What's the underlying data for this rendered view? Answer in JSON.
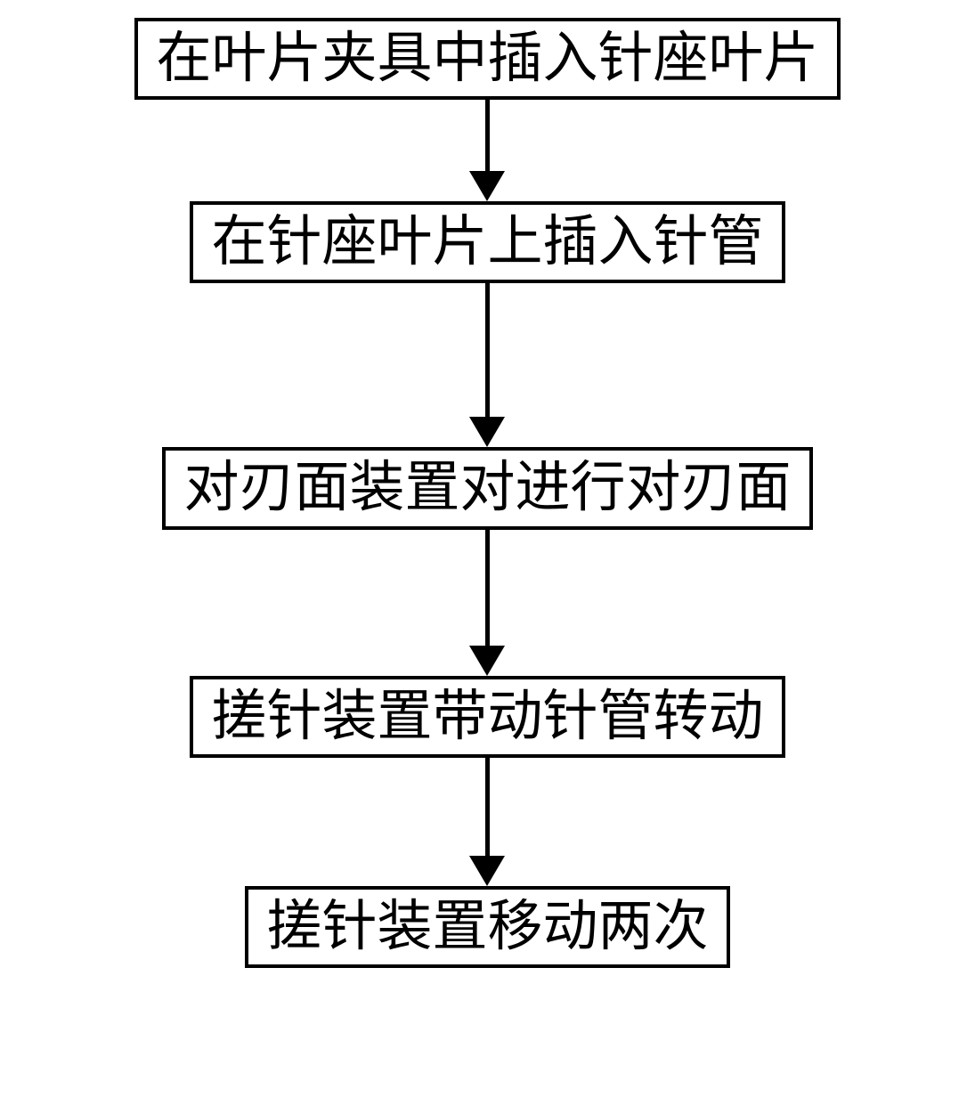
{
  "flowchart": {
    "type": "flowchart",
    "direction": "vertical",
    "node_border_color": "#000000",
    "node_border_width": 4,
    "node_background": "#ffffff",
    "text_color": "#000000",
    "font_family": "KaiTi",
    "font_size_pt": 46,
    "arrow_color": "#000000",
    "arrow_line_width": 5,
    "arrow_head_width": 40,
    "arrow_head_height": 34,
    "nodes": [
      {
        "id": "n1",
        "label": "在叶片夹具中插入针座叶片",
        "arrow_line_height": 80
      },
      {
        "id": "n2",
        "label": "在针座叶片上插入针管",
        "arrow_line_height": 150
      },
      {
        "id": "n3",
        "label": "对刃面装置对进行对刃面",
        "arrow_line_height": 130
      },
      {
        "id": "n4",
        "label": "搓针装置带动针管转动",
        "arrow_line_height": 110
      },
      {
        "id": "n5",
        "label": "搓针装置移动两次",
        "arrow_line_height": 0
      }
    ],
    "edges": [
      {
        "from": "n1",
        "to": "n2"
      },
      {
        "from": "n2",
        "to": "n3"
      },
      {
        "from": "n3",
        "to": "n4"
      },
      {
        "from": "n4",
        "to": "n5"
      }
    ]
  }
}
